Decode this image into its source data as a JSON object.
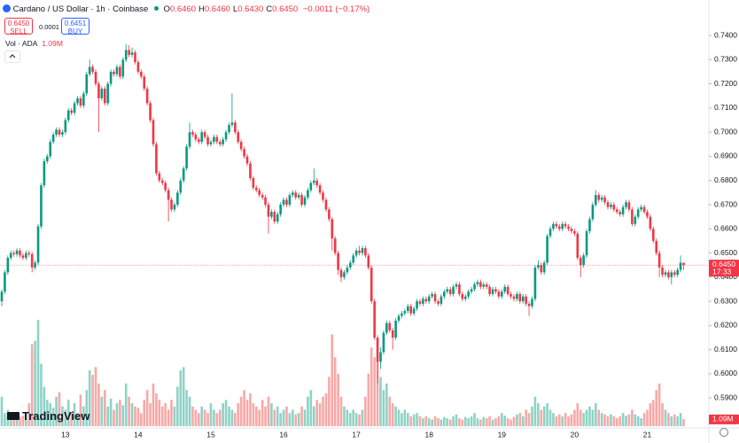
{
  "header": {
    "symbol": "Cardano / US Dollar · 1h · Coinbase",
    "ohlc": [
      {
        "key": "O",
        "value": "0.6460"
      },
      {
        "key": "H",
        "value": "0.6460"
      },
      {
        "key": "L",
        "value": "0.6430"
      },
      {
        "key": "C",
        "value": "0.6450"
      }
    ],
    "change": "−0.0011 (−0.17%)",
    "sell": {
      "price": "0.6450",
      "label": "SELL"
    },
    "spread": "0.0001",
    "buy": {
      "price": "0.6451",
      "label": "BUY"
    },
    "volume_legend": {
      "label": "Vol · ADA",
      "value": "1.09M"
    },
    "logo": "TradingView"
  },
  "chart_data": {
    "type": "candlestick",
    "up_color": "#089981",
    "down_color": "#f23645",
    "volume_up_color": "#8fd2c6",
    "volume_down_color": "#f7a9a7",
    "grid": false,
    "ylim": [
      0.5776,
      0.7547
    ],
    "yticks": [
      {
        "value": 0.59,
        "label": "0.5900"
      },
      {
        "value": 0.6,
        "label": "0.6000"
      },
      {
        "value": 0.61,
        "label": "0.6100"
      },
      {
        "value": 0.62,
        "label": "0.6200"
      },
      {
        "value": 0.63,
        "label": "0.6300"
      },
      {
        "value": 0.64,
        "label": "0.6400"
      },
      {
        "value": 0.65,
        "label": "0.6500"
      },
      {
        "value": 0.66,
        "label": "0.6600"
      },
      {
        "value": 0.67,
        "label": "0.6700"
      },
      {
        "value": 0.68,
        "label": "0.6800"
      },
      {
        "value": 0.69,
        "label": "0.6900"
      },
      {
        "value": 0.7,
        "label": "0.7000"
      },
      {
        "value": 0.71,
        "label": "0.7100"
      },
      {
        "value": 0.72,
        "label": "0.7200"
      },
      {
        "value": 0.73,
        "label": "0.7300"
      },
      {
        "value": 0.74,
        "label": "0.7400"
      }
    ],
    "price_line": {
      "value": 0.645,
      "label": "0.6450",
      "countdown": "17:33"
    },
    "volume_label": "1.09M",
    "categories": [
      null,
      null,
      null,
      null,
      null,
      null,
      null,
      null,
      null,
      null,
      null,
      null,
      null,
      null,
      null,
      null,
      null,
      null,
      null,
      null,
      null,
      "13",
      null,
      null,
      null,
      null,
      null,
      null,
      null,
      null,
      null,
      null,
      null,
      null,
      null,
      null,
      null,
      null,
      null,
      null,
      null,
      null,
      null,
      null,
      null,
      "14",
      null,
      null,
      null,
      null,
      null,
      null,
      null,
      null,
      null,
      null,
      null,
      null,
      null,
      null,
      null,
      null,
      null,
      null,
      null,
      null,
      null,
      null,
      null,
      "15",
      null,
      null,
      null,
      null,
      null,
      null,
      null,
      null,
      null,
      null,
      null,
      null,
      null,
      null,
      null,
      null,
      null,
      null,
      null,
      null,
      null,
      null,
      null,
      "16",
      null,
      null,
      null,
      null,
      null,
      null,
      null,
      null,
      null,
      null,
      null,
      null,
      null,
      null,
      null,
      null,
      null,
      null,
      null,
      null,
      null,
      null,
      null,
      "17",
      null,
      null,
      null,
      null,
      null,
      null,
      null,
      null,
      null,
      null,
      null,
      null,
      null,
      null,
      null,
      null,
      null,
      null,
      null,
      null,
      null,
      null,
      null,
      "18",
      null,
      null,
      null,
      null,
      null,
      null,
      null,
      null,
      null,
      null,
      null,
      null,
      null,
      null,
      null,
      null,
      null,
      null,
      null,
      null,
      null,
      null,
      null,
      "19",
      null,
      null,
      null,
      null,
      null,
      null,
      null,
      null,
      null,
      null,
      null,
      null,
      null,
      null,
      null,
      null,
      null,
      null,
      null,
      null,
      null,
      null,
      null,
      "20",
      null,
      null,
      null,
      null,
      null,
      null,
      null,
      null,
      null,
      null,
      null,
      null,
      null,
      null,
      null,
      null,
      null,
      null,
      null,
      null,
      null,
      null,
      null,
      "21",
      null,
      null,
      null,
      null,
      null,
      null,
      null,
      null,
      null,
      null,
      null,
      null
    ],
    "open": [
      0.63,
      0.634,
      0.642,
      0.648,
      0.65,
      0.6495,
      0.651,
      0.649,
      0.648,
      0.65,
      0.6495,
      0.644,
      0.646,
      0.661,
      0.678,
      0.688,
      0.69,
      0.696,
      0.699,
      0.701,
      0.699,
      0.7,
      0.705,
      0.709,
      0.708,
      0.712,
      0.714,
      0.711,
      0.716,
      0.724,
      0.727,
      0.725,
      0.72,
      0.714,
      0.718,
      0.712,
      0.72,
      0.725,
      0.724,
      0.727,
      0.723,
      0.73,
      0.734,
      0.732,
      0.733,
      0.729,
      0.725,
      0.723,
      0.718,
      0.712,
      0.705,
      0.695,
      0.683,
      0.68,
      0.679,
      0.676,
      0.672,
      0.668,
      0.67,
      0.675,
      0.68,
      0.685,
      0.694,
      0.7,
      0.699,
      0.697,
      0.696,
      0.7,
      0.698,
      0.695,
      0.696,
      0.698,
      0.696,
      0.695,
      0.697,
      0.7,
      0.703,
      0.704,
      0.7,
      0.696,
      0.693,
      0.69,
      0.687,
      0.681,
      0.677,
      0.676,
      0.674,
      0.673,
      0.67,
      0.665,
      0.667,
      0.663,
      0.666,
      0.67,
      0.672,
      0.67,
      0.674,
      0.675,
      0.673,
      0.674,
      0.67,
      0.673,
      0.676,
      0.679,
      0.68,
      0.678,
      0.675,
      0.672,
      0.668,
      0.664,
      0.656,
      0.65,
      0.643,
      0.64,
      0.642,
      0.644,
      0.646,
      0.649,
      0.651,
      0.65,
      0.652,
      0.649,
      0.644,
      0.63,
      0.615,
      0.605,
      0.609,
      0.617,
      0.621,
      0.618,
      0.615,
      0.622,
      0.624,
      0.625,
      0.626,
      0.628,
      0.625,
      0.627,
      0.63,
      0.629,
      0.631,
      0.63,
      0.632,
      0.633,
      0.63,
      0.629,
      0.632,
      0.634,
      0.635,
      0.633,
      0.636,
      0.637,
      0.633,
      0.631,
      0.632,
      0.634,
      0.635,
      0.637,
      0.638,
      0.636,
      0.637,
      0.636,
      0.633,
      0.635,
      0.634,
      0.632,
      0.634,
      0.636,
      0.633,
      0.632,
      0.631,
      0.633,
      0.63,
      0.632,
      0.629,
      0.628,
      0.631,
      0.644,
      0.645,
      0.642,
      0.646,
      0.657,
      0.66,
      0.662,
      0.661,
      0.66,
      0.662,
      0.661,
      0.66,
      0.659,
      0.658,
      0.648,
      0.645,
      0.649,
      0.659,
      0.664,
      0.67,
      0.674,
      0.672,
      0.673,
      0.671,
      0.669,
      0.67,
      0.668,
      0.667,
      0.666,
      0.669,
      0.671,
      0.668,
      0.662,
      0.665,
      0.668,
      0.669,
      0.667,
      0.665,
      0.66,
      0.655,
      0.65,
      0.644,
      0.641,
      0.642,
      0.64,
      0.642,
      0.641,
      0.643,
      0.646
    ],
    "high": [
      0.635,
      0.643,
      0.649,
      0.651,
      0.651,
      0.652,
      0.652,
      0.65,
      0.651,
      0.651,
      0.6505,
      0.647,
      0.662,
      0.679,
      0.689,
      0.691,
      0.697,
      0.7,
      0.702,
      0.702,
      0.701,
      0.706,
      0.71,
      0.71,
      0.713,
      0.715,
      0.715,
      0.717,
      0.725,
      0.73,
      0.728,
      0.726,
      0.721,
      0.719,
      0.719,
      0.721,
      0.726,
      0.726,
      0.728,
      0.728,
      0.731,
      0.7365,
      0.736,
      0.735,
      0.734,
      0.73,
      0.726,
      0.724,
      0.719,
      0.713,
      0.706,
      0.696,
      0.684,
      0.681,
      0.68,
      0.677,
      0.673,
      0.671,
      0.676,
      0.681,
      0.686,
      0.695,
      0.704,
      0.701,
      0.7,
      0.698,
      0.701,
      0.701,
      0.699,
      0.697,
      0.699,
      0.699,
      0.697,
      0.698,
      0.701,
      0.704,
      0.716,
      0.705,
      0.701,
      0.697,
      0.694,
      0.691,
      0.688,
      0.682,
      0.678,
      0.677,
      0.675,
      0.674,
      0.671,
      0.668,
      0.668,
      0.667,
      0.671,
      0.673,
      0.673,
      0.675,
      0.676,
      0.676,
      0.675,
      0.675,
      0.674,
      0.677,
      0.68,
      0.685,
      0.681,
      0.679,
      0.676,
      0.673,
      0.669,
      0.665,
      0.657,
      0.651,
      0.644,
      0.643,
      0.645,
      0.647,
      0.65,
      0.652,
      0.653,
      0.653,
      0.653,
      0.65,
      0.645,
      0.631,
      0.616,
      0.611,
      0.618,
      0.622,
      0.622,
      0.619,
      0.623,
      0.625,
      0.626,
      0.627,
      0.629,
      0.629,
      0.628,
      0.631,
      0.631,
      0.632,
      0.632,
      0.633,
      0.634,
      0.634,
      0.631,
      0.633,
      0.635,
      0.636,
      0.636,
      0.637,
      0.638,
      0.638,
      0.634,
      0.633,
      0.635,
      0.636,
      0.638,
      0.639,
      0.639,
      0.638,
      0.638,
      0.637,
      0.636,
      0.636,
      0.635,
      0.635,
      0.637,
      0.637,
      0.634,
      0.633,
      0.634,
      0.634,
      0.633,
      0.633,
      0.63,
      0.632,
      0.645,
      0.647,
      0.646,
      0.647,
      0.658,
      0.661,
      0.663,
      0.663,
      0.662,
      0.663,
      0.663,
      0.662,
      0.661,
      0.66,
      0.659,
      0.649,
      0.65,
      0.66,
      0.665,
      0.671,
      0.676,
      0.675,
      0.674,
      0.674,
      0.672,
      0.671,
      0.671,
      0.669,
      0.668,
      0.67,
      0.672,
      0.672,
      0.669,
      0.666,
      0.669,
      0.67,
      0.67,
      0.668,
      0.666,
      0.661,
      0.656,
      0.651,
      0.645,
      0.643,
      0.643,
      0.643,
      0.643,
      0.644,
      0.649,
      0.646
    ],
    "low": [
      0.628,
      0.633,
      0.641,
      0.647,
      0.6485,
      0.6485,
      0.648,
      0.647,
      0.647,
      0.6485,
      0.642,
      0.643,
      0.645,
      0.66,
      0.677,
      0.687,
      0.689,
      0.695,
      0.698,
      0.698,
      0.698,
      0.699,
      0.704,
      0.707,
      0.707,
      0.711,
      0.71,
      0.71,
      0.715,
      0.723,
      0.724,
      0.719,
      0.7,
      0.713,
      0.711,
      0.711,
      0.719,
      0.723,
      0.723,
      0.722,
      0.722,
      0.729,
      0.731,
      0.731,
      0.728,
      0.724,
      0.722,
      0.717,
      0.711,
      0.704,
      0.694,
      0.682,
      0.679,
      0.678,
      0.675,
      0.663,
      0.667,
      0.667,
      0.669,
      0.674,
      0.679,
      0.684,
      0.693,
      0.698,
      0.696,
      0.695,
      0.695,
      0.697,
      0.694,
      0.694,
      0.695,
      0.695,
      0.694,
      0.694,
      0.696,
      0.699,
      0.702,
      0.699,
      0.695,
      0.692,
      0.689,
      0.686,
      0.68,
      0.676,
      0.675,
      0.673,
      0.672,
      0.669,
      0.658,
      0.664,
      0.662,
      0.662,
      0.665,
      0.669,
      0.669,
      0.669,
      0.673,
      0.672,
      0.672,
      0.669,
      0.669,
      0.672,
      0.675,
      0.678,
      0.677,
      0.674,
      0.671,
      0.667,
      0.663,
      0.651,
      0.649,
      0.641,
      0.638,
      0.639,
      0.641,
      0.643,
      0.645,
      0.648,
      0.649,
      0.649,
      0.648,
      0.643,
      0.629,
      0.614,
      0.596,
      0.602,
      0.608,
      0.616,
      0.617,
      0.61,
      0.614,
      0.621,
      0.623,
      0.624,
      0.625,
      0.624,
      0.624,
      0.626,
      0.628,
      0.628,
      0.629,
      0.629,
      0.631,
      0.629,
      0.628,
      0.628,
      0.631,
      0.633,
      0.632,
      0.632,
      0.635,
      0.632,
      0.63,
      0.63,
      0.631,
      0.633,
      0.634,
      0.636,
      0.635,
      0.635,
      0.635,
      0.632,
      0.632,
      0.633,
      0.631,
      0.631,
      0.633,
      0.632,
      0.631,
      0.63,
      0.63,
      0.629,
      0.629,
      0.628,
      0.624,
      0.627,
      0.63,
      0.643,
      0.641,
      0.641,
      0.645,
      0.656,
      0.659,
      0.66,
      0.659,
      0.659,
      0.66,
      0.659,
      0.658,
      0.657,
      0.647,
      0.64,
      0.644,
      0.648,
      0.658,
      0.663,
      0.669,
      0.671,
      0.671,
      0.67,
      0.668,
      0.668,
      0.667,
      0.666,
      0.665,
      0.665,
      0.668,
      0.667,
      0.661,
      0.661,
      0.664,
      0.667,
      0.666,
      0.664,
      0.659,
      0.654,
      0.649,
      0.64,
      0.64,
      0.64,
      0.639,
      0.637,
      0.64,
      0.64,
      0.642,
      0.643
    ],
    "close": [
      0.634,
      0.642,
      0.648,
      0.65,
      0.6495,
      0.651,
      0.649,
      0.648,
      0.65,
      0.6495,
      0.644,
      0.646,
      0.661,
      0.678,
      0.688,
      0.69,
      0.696,
      0.699,
      0.701,
      0.699,
      0.7,
      0.705,
      0.709,
      0.708,
      0.712,
      0.714,
      0.711,
      0.716,
      0.724,
      0.727,
      0.725,
      0.72,
      0.714,
      0.718,
      0.712,
      0.72,
      0.725,
      0.724,
      0.727,
      0.723,
      0.73,
      0.734,
      0.732,
      0.733,
      0.729,
      0.725,
      0.723,
      0.718,
      0.712,
      0.705,
      0.695,
      0.683,
      0.68,
      0.679,
      0.676,
      0.672,
      0.668,
      0.67,
      0.675,
      0.68,
      0.685,
      0.694,
      0.7,
      0.699,
      0.697,
      0.696,
      0.7,
      0.698,
      0.695,
      0.696,
      0.698,
      0.696,
      0.695,
      0.697,
      0.7,
      0.703,
      0.704,
      0.7,
      0.696,
      0.693,
      0.69,
      0.687,
      0.681,
      0.677,
      0.676,
      0.674,
      0.673,
      0.67,
      0.665,
      0.667,
      0.663,
      0.666,
      0.67,
      0.672,
      0.67,
      0.674,
      0.675,
      0.673,
      0.674,
      0.67,
      0.673,
      0.676,
      0.679,
      0.68,
      0.678,
      0.675,
      0.672,
      0.668,
      0.664,
      0.656,
      0.65,
      0.643,
      0.64,
      0.642,
      0.644,
      0.646,
      0.649,
      0.651,
      0.65,
      0.652,
      0.649,
      0.644,
      0.63,
      0.615,
      0.605,
      0.609,
      0.617,
      0.621,
      0.618,
      0.615,
      0.622,
      0.624,
      0.625,
      0.626,
      0.628,
      0.625,
      0.627,
      0.63,
      0.629,
      0.631,
      0.63,
      0.632,
      0.633,
      0.63,
      0.629,
      0.632,
      0.634,
      0.635,
      0.633,
      0.636,
      0.637,
      0.633,
      0.631,
      0.632,
      0.634,
      0.635,
      0.637,
      0.638,
      0.636,
      0.637,
      0.636,
      0.633,
      0.635,
      0.634,
      0.632,
      0.634,
      0.636,
      0.633,
      0.632,
      0.631,
      0.633,
      0.63,
      0.632,
      0.629,
      0.628,
      0.631,
      0.644,
      0.645,
      0.642,
      0.646,
      0.657,
      0.66,
      0.662,
      0.661,
      0.66,
      0.662,
      0.661,
      0.66,
      0.659,
      0.658,
      0.648,
      0.645,
      0.649,
      0.659,
      0.664,
      0.67,
      0.674,
      0.672,
      0.673,
      0.671,
      0.669,
      0.67,
      0.668,
      0.667,
      0.666,
      0.669,
      0.671,
      0.668,
      0.662,
      0.665,
      0.668,
      0.669,
      0.667,
      0.665,
      0.66,
      0.655,
      0.65,
      0.644,
      0.641,
      0.642,
      0.64,
      0.642,
      0.641,
      0.643,
      0.646,
      0.645
    ],
    "volume": [
      4.5,
      2.0,
      2.5,
      1.5,
      1.8,
      2.2,
      1.4,
      1.6,
      2.0,
      3.5,
      12.5,
      13.0,
      16.2,
      9.5,
      6.0,
      4.0,
      3.5,
      2.8,
      4.5,
      5.2,
      3.0,
      2.5,
      4.0,
      2.2,
      3.5,
      2.0,
      4.8,
      3.0,
      5.5,
      8.5,
      7.8,
      9.0,
      6.5,
      4.5,
      5.5,
      3.0,
      4.2,
      2.5,
      3.5,
      4.0,
      3.2,
      6.5,
      4.5,
      3.5,
      3.0,
      2.8,
      2.0,
      4.0,
      5.5,
      3.5,
      6.5,
      5.0,
      4.0,
      3.0,
      3.5,
      2.5,
      4.0,
      3.0,
      6.0,
      8.5,
      9.0,
      5.5,
      4.5,
      3.0,
      2.5,
      2.0,
      3.0,
      2.5,
      2.0,
      3.5,
      2.5,
      2.0,
      2.5,
      3.5,
      4.0,
      3.0,
      2.5,
      2.0,
      3.5,
      4.5,
      5.5,
      4.0,
      5.0,
      3.5,
      3.0,
      2.5,
      4.0,
      3.0,
      4.5,
      3.5,
      2.5,
      3.0,
      2.0,
      2.5,
      3.0,
      2.0,
      2.5,
      1.8,
      2.0,
      3.0,
      2.5,
      4.5,
      5.5,
      3.0,
      4.0,
      3.5,
      4.5,
      5.0,
      7.5,
      14.0,
      10.5,
      8.0,
      4.5,
      3.0,
      2.5,
      2.0,
      2.5,
      2.0,
      1.8,
      2.5,
      4.5,
      8.0,
      12.0,
      10.5,
      10.0,
      7.5,
      5.5,
      6.5,
      4.5,
      3.5,
      3.0,
      2.5,
      2.0,
      2.5,
      2.0,
      1.5,
      1.8,
      2.0,
      1.5,
      1.2,
      1.5,
      1.2,
      1.0,
      1.5,
      1.2,
      1.0,
      1.4,
      1.2,
      1.0,
      1.5,
      1.8,
      1.2,
      1.0,
      1.4,
      1.2,
      1.5,
      2.0,
      1.2,
      1.0,
      1.4,
      1.2,
      1.5,
      1.0,
      1.2,
      1.5,
      2.0,
      1.6,
      1.2,
      1.0,
      1.4,
      1.8,
      2.0,
      1.5,
      2.5,
      2.0,
      3.0,
      4.5,
      3.5,
      2.5,
      3.0,
      3.5,
      2.5,
      2.0,
      1.5,
      1.8,
      1.5,
      2.0,
      1.5,
      1.8,
      2.5,
      3.5,
      2.5,
      2.0,
      2.5,
      3.0,
      2.5,
      3.5,
      2.5,
      2.0,
      1.8,
      1.5,
      1.8,
      1.5,
      1.2,
      1.5,
      2.0,
      1.6,
      1.8,
      2.5,
      1.8,
      1.5,
      1.2,
      2.0,
      2.5,
      3.5,
      4.0,
      5.5,
      6.5,
      3.5,
      2.5,
      2.0,
      1.5,
      1.8,
      1.5,
      2.0,
      1.09
    ]
  }
}
